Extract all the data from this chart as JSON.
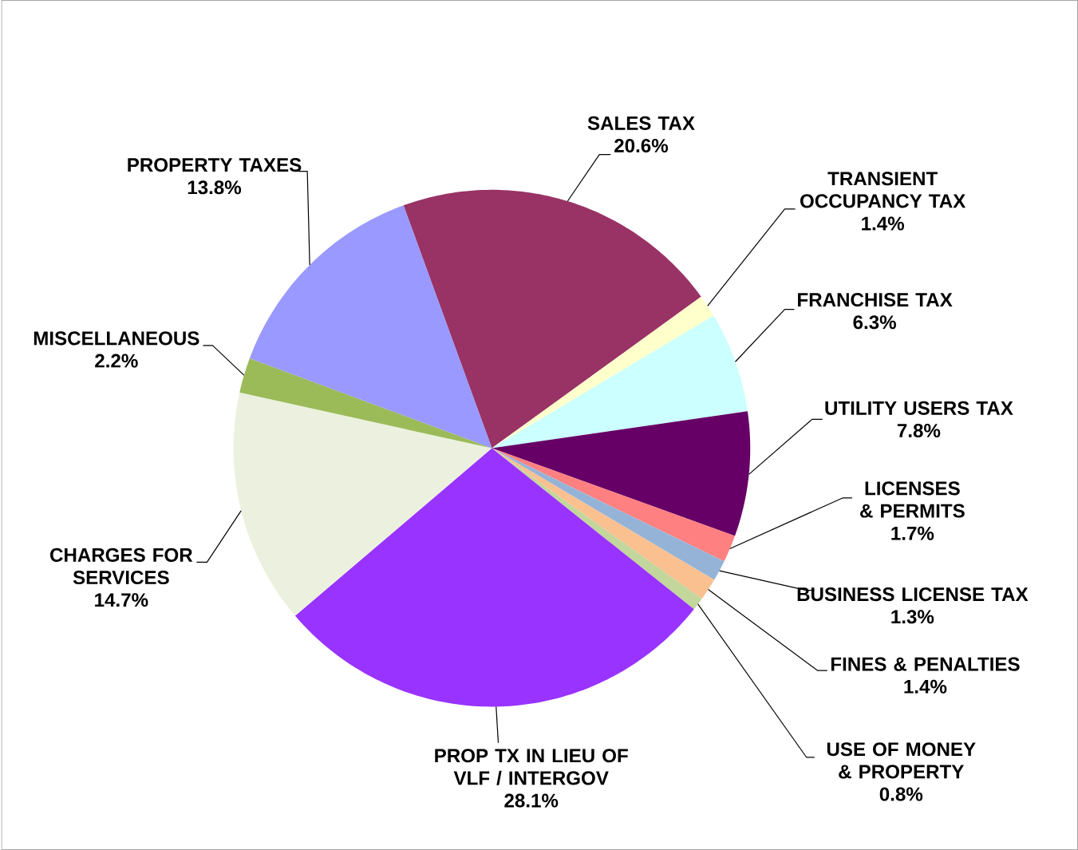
{
  "chart_data": {
    "type": "pie",
    "categories": [
      "SALES TAX",
      "TRANSIENT OCCUPANCY TAX",
      "FRANCHISE TAX",
      "UTILITY USERS TAX",
      "LICENSES & PERMITS",
      "BUSINESS LICENSE TAX",
      "FINES & PENALTIES",
      "USE OF MONEY & PROPERTY",
      "PROP TX IN LIEU OF VLF / INTERGOV",
      "CHARGES FOR SERVICES",
      "MISCELLANEOUS",
      "PROPERTY TAXES"
    ],
    "values": [
      20.6,
      1.4,
      6.3,
      7.8,
      1.7,
      1.3,
      1.4,
      0.8,
      28.1,
      14.7,
      2.2,
      13.8
    ],
    "value_labels": [
      "20.6%",
      "1.4%",
      "6.3%",
      "7.8%",
      "1.7%",
      "1.3%",
      "1.4%",
      "0.8%",
      "28.1%",
      "14.7%",
      "2.2%",
      "13.8%"
    ],
    "colors": [
      "#993366",
      "#FFFFCC",
      "#CCFFFF",
      "#660066",
      "#FF8080",
      "#95B3D7",
      "#FAC090",
      "#C3D69B",
      "#9933FF",
      "#EBF1DE",
      "#9BBB59",
      "#9999FF"
    ],
    "legend": false
  }
}
